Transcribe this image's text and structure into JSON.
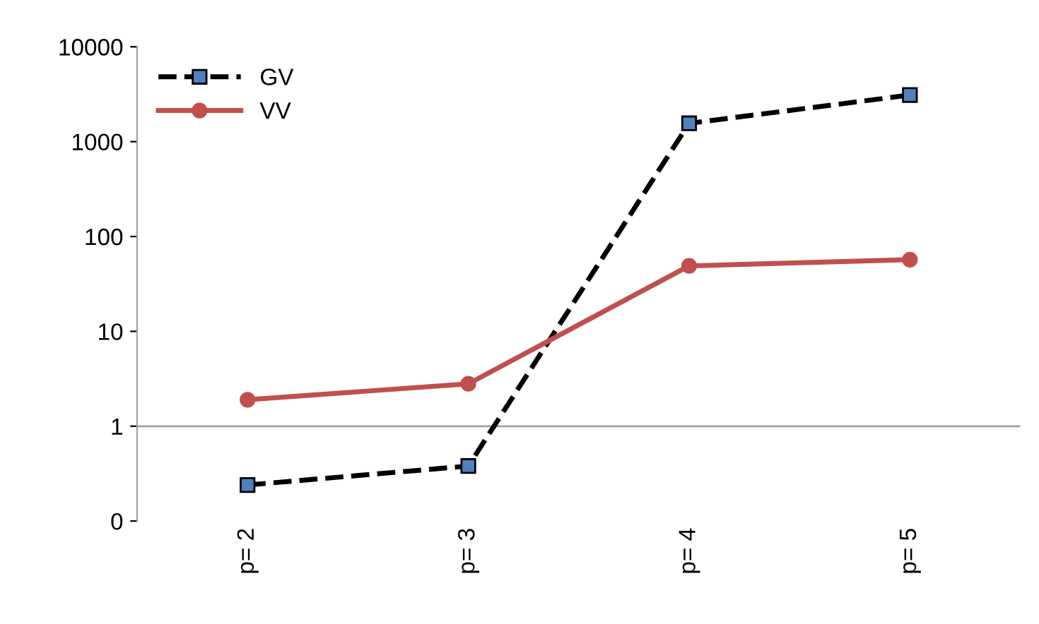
{
  "chart_data": {
    "type": "line",
    "categories": [
      "p= 2",
      "p= 3",
      "p= 4",
      "p= 5"
    ],
    "series": [
      {
        "name": "GV",
        "color": "#000000",
        "marker": "square",
        "line_style": "dashed",
        "values": [
          0.24,
          0.38,
          1560,
          3100
        ]
      },
      {
        "name": "VV",
        "color": "#c0504d",
        "marker": "circle",
        "line_style": "solid",
        "values": [
          1.9,
          2.8,
          49,
          57
        ]
      }
    ],
    "log": "y",
    "ylim": [
      0.1,
      10000
    ],
    "yticks": [
      {
        "value": 0.1,
        "label": "0"
      },
      1,
      10,
      100,
      1000,
      10000
    ],
    "ref_lines": [
      {
        "axis": "y",
        "value": 1,
        "color": "#a0a0a0"
      }
    ],
    "grid": false,
    "legend": "top left"
  }
}
